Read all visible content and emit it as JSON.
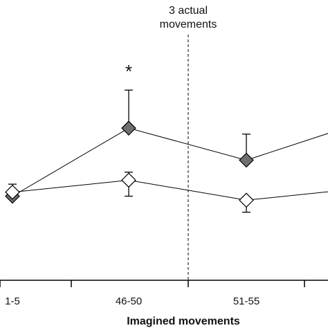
{
  "chart_data": {
    "type": "line",
    "title": "",
    "xlabel": "Imagined movements",
    "ylabel": "",
    "categories": [
      "1-5",
      "46-50",
      "51-55",
      ""
    ],
    "ylim": [
      0,
      14
    ],
    "grid": false,
    "series": [
      {
        "marker": "diamond-filled",
        "color": "#6f6f6f",
        "values": [
          4.2,
          7.6,
          6.0,
          7.9
        ],
        "err_upper": [
          0,
          1.9,
          1.3,
          0
        ],
        "err_lower": [
          0,
          0,
          0,
          0
        ]
      },
      {
        "marker": "diamond-open",
        "color": "#ffffff",
        "values": [
          4.4,
          5.0,
          4.0,
          4.6
        ],
        "err_upper": [
          0.4,
          0.4,
          0,
          0
        ],
        "err_lower": [
          0,
          0.8,
          0.6,
          0
        ]
      }
    ],
    "annotations": [
      {
        "text": "*",
        "category_index": 1,
        "y": 10.4
      },
      {
        "text": "3 actual",
        "line": 1
      },
      {
        "text": "movements",
        "line": 2
      }
    ],
    "vline": {
      "after_category_index": 1,
      "style": "dashed"
    }
  }
}
